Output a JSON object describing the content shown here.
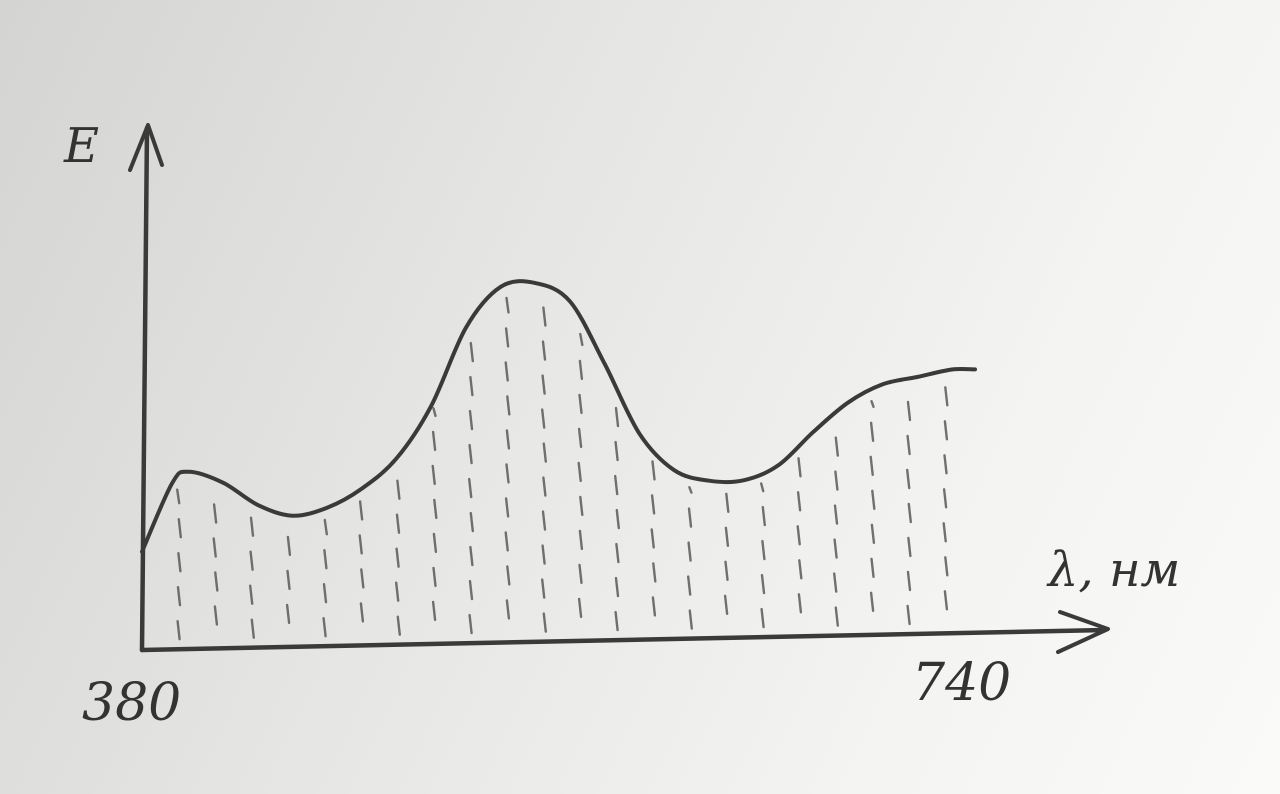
{
  "chart_data": {
    "type": "area",
    "title": "",
    "xlabel": "λ, нм",
    "ylabel": "E",
    "xlim": [
      380,
      740
    ],
    "ylim": [
      0,
      1
    ],
    "grid": false,
    "x_tick_labels": [
      "380",
      "740"
    ],
    "fill_pattern": "vertical-dashes",
    "series": [
      {
        "name": "E(λ)",
        "x": [
          380,
          393,
          400,
          415,
          430,
          445,
          460,
          475,
          490,
          505,
          520,
          535,
          550,
          565,
          580,
          595,
          610,
          625,
          640,
          655,
          670,
          685,
          700,
          715,
          730,
          740
        ],
        "values": [
          0.26,
          0.44,
          0.47,
          0.44,
          0.38,
          0.35,
          0.37,
          0.42,
          0.5,
          0.64,
          0.85,
          0.96,
          0.97,
          0.92,
          0.75,
          0.56,
          0.46,
          0.43,
          0.43,
          0.47,
          0.56,
          0.64,
          0.69,
          0.71,
          0.73,
          0.73
        ]
      }
    ]
  }
}
